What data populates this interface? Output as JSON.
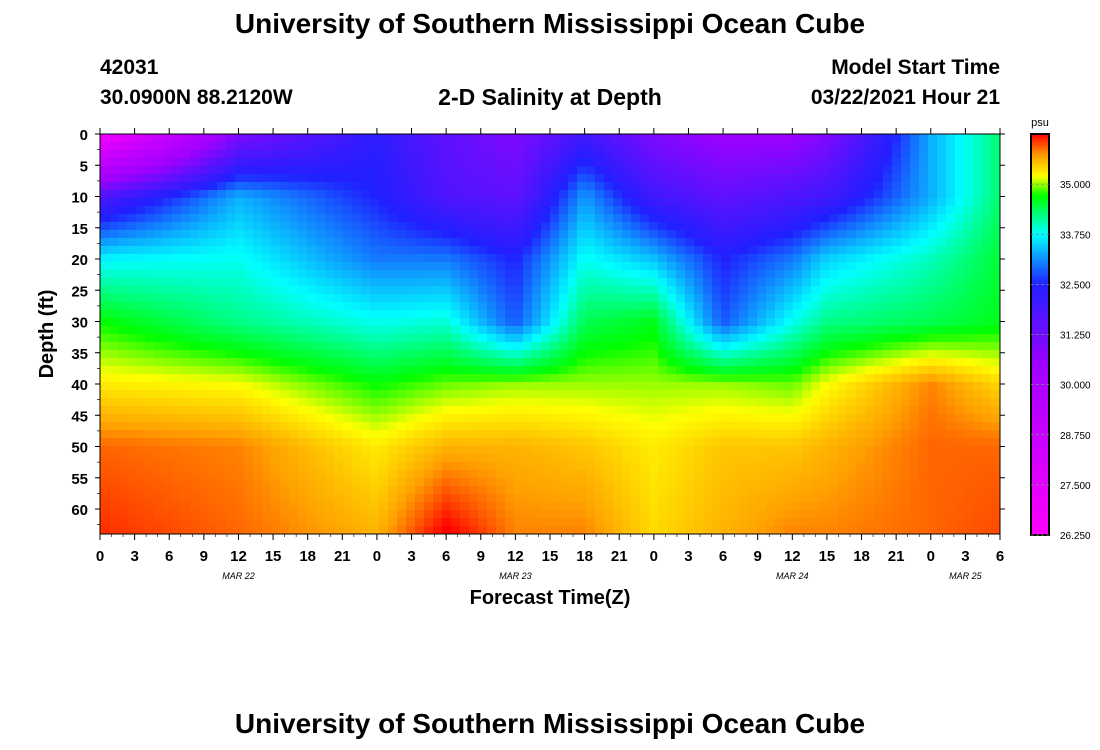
{
  "page": {
    "title_top": "University of Southern Mississippi Ocean Cube",
    "title_bottom": "University of Southern Mississippi Ocean Cube",
    "station_id": "42031",
    "station_coords": "30.0900N 88.2120W",
    "plot_title": "2-D Salinity at Depth",
    "model_start_label": "Model Start Time",
    "model_start_value": "03/22/2021 Hour 21"
  },
  "chart_data": {
    "type": "heatmap",
    "title": "2-D Salinity at Depth",
    "xlabel": "Forecast Time(Z)",
    "ylabel": "Depth (ft)",
    "x_tick_labels": [
      "0",
      "3",
      "6",
      "9",
      "12",
      "15",
      "18",
      "21",
      "0",
      "3",
      "6",
      "9",
      "12",
      "15",
      "18",
      "21",
      "0",
      "3",
      "6",
      "9",
      "12",
      "15",
      "18",
      "21",
      "0",
      "3",
      "6"
    ],
    "x_date_labels": [
      {
        "label": "MAR 22",
        "tick_index": 4
      },
      {
        "label": "MAR 23",
        "tick_index": 12
      },
      {
        "label": "MAR 24",
        "tick_index": 20
      },
      {
        "label": "MAR 25",
        "tick_index": 25
      }
    ],
    "x_range_hours": [
      0,
      78
    ],
    "y_ticks": [
      0,
      5,
      10,
      15,
      20,
      25,
      30,
      35,
      40,
      45,
      50,
      55,
      60
    ],
    "y_range_ft": [
      0,
      64
    ],
    "y_inverted": true,
    "colorbar": {
      "unit": "psu",
      "ticks": [
        "35.000",
        "33.750",
        "32.500",
        "31.250",
        "30.000",
        "28.750",
        "27.500",
        "26.250"
      ],
      "min": 26.25,
      "max": 36.25,
      "colors": [
        "#ff00ff",
        "#a000ff",
        "#2020ff",
        "#00ffff",
        "#00ff00",
        "#ffff00",
        "#ffa000",
        "#ff0000"
      ],
      "color_stops": [
        26.25,
        30.5,
        32.5,
        33.75,
        34.7,
        35.2,
        35.7,
        36.25
      ]
    },
    "depth_levels_ft": [
      0,
      10,
      20,
      30,
      40,
      50,
      64
    ],
    "time_hours": [
      0,
      12,
      24,
      30,
      36,
      42,
      48,
      54,
      60,
      63,
      72,
      78
    ],
    "salinity_psu": [
      [
        26.6,
        31.0,
        32.3,
        31.5,
        31.0,
        32.0,
        31.0,
        30.5,
        30.5,
        31.0,
        33.3,
        34.3
      ],
      [
        31.8,
        33.3,
        32.5,
        31.8,
        31.5,
        33.2,
        32.0,
        31.5,
        31.8,
        32.0,
        33.3,
        34.3
      ],
      [
        33.7,
        33.8,
        33.0,
        33.0,
        32.5,
        33.8,
        33.4,
        32.5,
        33.0,
        33.5,
        34.0,
        34.5
      ],
      [
        34.7,
        34.2,
        33.8,
        33.9,
        32.8,
        34.4,
        34.6,
        32.8,
        33.8,
        34.2,
        34.4,
        34.6
      ],
      [
        35.3,
        35.2,
        34.7,
        34.9,
        35.0,
        35.0,
        35.0,
        35.0,
        34.9,
        35.2,
        35.8,
        35.4
      ],
      [
        35.9,
        35.8,
        35.3,
        35.6,
        35.6,
        35.5,
        35.3,
        35.5,
        35.5,
        35.6,
        35.9,
        35.9
      ],
      [
        36.1,
        35.9,
        35.6,
        36.3,
        35.8,
        35.8,
        35.4,
        35.6,
        35.8,
        35.8,
        35.9,
        36.0
      ]
    ]
  }
}
